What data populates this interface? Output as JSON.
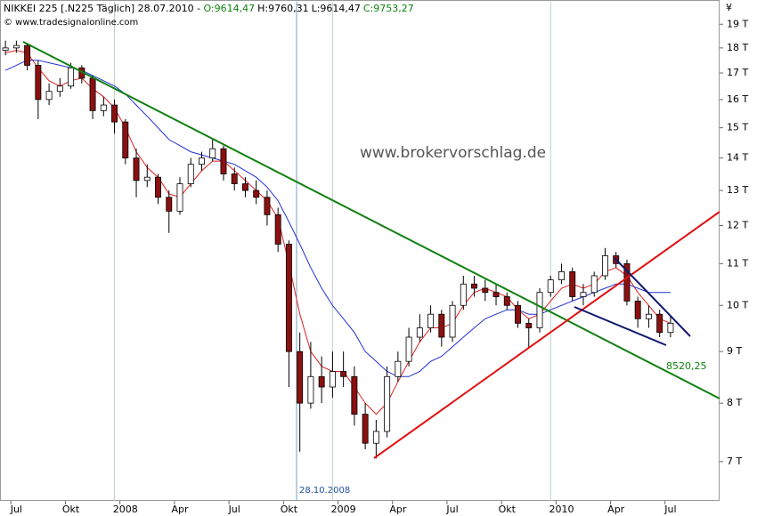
{
  "chart_data": {
    "type": "candlestick",
    "header": {
      "instrument": "NIKKEI 225 [.N225  Täglich] 28.07.2010 -",
      "open": "O:9614,47",
      "high": "H:9760,31",
      "low": "L:9614,47",
      "close": "C:9753,27",
      "copyright": "© www.tradesignalonline.com"
    },
    "currency": "¥",
    "watermark": "www.brokervorschlag.de",
    "annotations": {
      "level": "8520,25",
      "date": "28.10.2008"
    },
    "log_scale": true,
    "ylim": [
      6400,
      20000
    ],
    "yticks": [
      {
        "value": 7000,
        "label": "7 T"
      },
      {
        "value": 8000,
        "label": "8 T"
      },
      {
        "value": 9000,
        "label": "9 T"
      },
      {
        "value": 10000,
        "label": "10 T"
      },
      {
        "value": 11000,
        "label": "11 T"
      },
      {
        "value": 12000,
        "label": "12 T"
      },
      {
        "value": 13000,
        "label": "13 T"
      },
      {
        "value": 14000,
        "label": "14 T"
      },
      {
        "value": 15000,
        "label": "15 T"
      },
      {
        "value": 16000,
        "label": "16 T"
      },
      {
        "value": 17000,
        "label": "17 T"
      },
      {
        "value": 18000,
        "label": "18 T"
      },
      {
        "value": 19000,
        "label": "19 T"
      }
    ],
    "categories": [
      null,
      "Jul",
      null,
      null,
      null,
      null,
      "Okt",
      null,
      null,
      null,
      null,
      "2008",
      null,
      null,
      null,
      null,
      "Apr",
      null,
      null,
      null,
      null,
      "Jul",
      null,
      null,
      null,
      null,
      "Okt",
      null,
      null,
      null,
      null,
      "2009",
      null,
      null,
      null,
      null,
      "Apr",
      null,
      null,
      null,
      null,
      "Jul",
      null,
      null,
      null,
      null,
      "Okt",
      null,
      null,
      null,
      null,
      "2010",
      null,
      null,
      null,
      null,
      "Apr",
      null,
      null,
      null,
      null,
      "Jul",
      null,
      null,
      null,
      null
    ],
    "up_color": "#ffffff",
    "down_color": "#8b1010",
    "open": [
      17900,
      18000,
      18100,
      17300,
      16000,
      16300,
      16500,
      17200,
      16800,
      15600,
      15800,
      15200,
      14000,
      13300,
      13400,
      12800,
      12400,
      13200,
      13800,
      14000,
      14300,
      13500,
      13200,
      13000,
      12800,
      12300,
      11500,
      9000,
      8000,
      8500,
      8300,
      8600,
      8500,
      7800,
      7300,
      7500,
      8500,
      8800,
      9300,
      9500,
      9800,
      9300,
      10000,
      10500,
      10400,
      10300,
      10200,
      10000,
      9600,
      9500,
      10300,
      10600,
      10800,
      10200,
      10300,
      10700,
      11200,
      11000,
      10100,
      9700,
      9800,
      9400,
      null,
      null,
      null,
      null
    ],
    "high": [
      18300,
      18300,
      18200,
      17500,
      16600,
      16800,
      17400,
      17300,
      16900,
      16100,
      16000,
      15300,
      14300,
      13800,
      13500,
      13000,
      13400,
      14000,
      14200,
      14600,
      14400,
      13700,
      13400,
      13300,
      13000,
      12500,
      11600,
      9400,
      9200,
      8900,
      9000,
      9000,
      8700,
      8000,
      7700,
      8700,
      9000,
      9500,
      9800,
      10000,
      9900,
      10100,
      10700,
      10700,
      10600,
      10500,
      10300,
      10100,
      9700,
      10400,
      10700,
      11000,
      10900,
      10500,
      10800,
      11400,
      11300,
      11100,
      10200,
      10000,
      9900,
      9760,
      null,
      null,
      null,
      null
    ],
    "low": [
      17700,
      17800,
      17100,
      15300,
      15800,
      16100,
      16400,
      16600,
      15300,
      15400,
      14800,
      13800,
      12800,
      13100,
      12600,
      11800,
      12300,
      13100,
      13600,
      13900,
      13300,
      13000,
      12800,
      12600,
      12000,
      11300,
      8300,
      7160,
      7900,
      8000,
      8100,
      8300,
      7600,
      7200,
      7050,
      7400,
      8400,
      8700,
      9200,
      9400,
      9100,
      9200,
      9900,
      10200,
      10100,
      10000,
      9900,
      9500,
      9080,
      9400,
      10200,
      10500,
      10100,
      10000,
      10200,
      10600,
      10900,
      10000,
      9500,
      9500,
      9300,
      9300,
      null,
      null,
      null,
      null
    ],
    "close": [
      18000,
      18100,
      17300,
      16000,
      16300,
      16500,
      17200,
      16800,
      15600,
      15800,
      15200,
      14000,
      13300,
      13400,
      12800,
      12400,
      13200,
      13800,
      14000,
      14300,
      13500,
      13200,
      13000,
      12800,
      12300,
      11500,
      9000,
      8000,
      8500,
      8300,
      8600,
      8500,
      7800,
      7300,
      7500,
      8500,
      8800,
      9300,
      9500,
      9800,
      9300,
      10000,
      10500,
      10400,
      10300,
      10200,
      10000,
      9600,
      9500,
      10300,
      10600,
      10800,
      10200,
      10300,
      10700,
      11200,
      11000,
      10100,
      9700,
      9800,
      9400,
      9600,
      null,
      null,
      null,
      null
    ],
    "overlays": [
      {
        "color": "#e02020",
        "values": [
          17800,
          17900,
          17800,
          17200,
          16700,
          16500,
          16700,
          16800,
          16400,
          16100,
          15700,
          15000,
          14200,
          13700,
          13400,
          12900,
          12800,
          13200,
          13600,
          13900,
          13900,
          13600,
          13300,
          13000,
          12700,
          12200,
          11000,
          9800,
          9000,
          8700,
          8600,
          8600,
          8300,
          8000,
          7800,
          8000,
          8400,
          8800,
          9200,
          9500,
          9500,
          9600,
          10000,
          10300,
          10400,
          10300,
          10200,
          9900,
          9700,
          9800,
          10100,
          10400,
          10500,
          10400,
          10500,
          10800,
          10900,
          10700,
          10300,
          10000,
          9700,
          9600,
          null,
          null,
          null,
          null
        ]
      },
      {
        "color": "#2030d0",
        "values": [
          17100,
          17300,
          17500,
          17500,
          17400,
          17300,
          17200,
          17100,
          16900,
          16700,
          16500,
          16200,
          15800,
          15400,
          15000,
          14600,
          14400,
          14200,
          14100,
          14000,
          13900,
          13800,
          13600,
          13400,
          13100,
          12700,
          12100,
          11500,
          10900,
          10400,
          10000,
          9700,
          9400,
          9000,
          8800,
          8600,
          8500,
          8500,
          8600,
          8800,
          8900,
          9100,
          9300,
          9500,
          9700,
          9800,
          9900,
          9900,
          9800,
          9800,
          9900,
          10000,
          10100,
          10200,
          10300,
          10400,
          10500,
          10500,
          10400,
          10300,
          10300,
          10300,
          null,
          null,
          null,
          null
        ]
      }
    ]
  }
}
